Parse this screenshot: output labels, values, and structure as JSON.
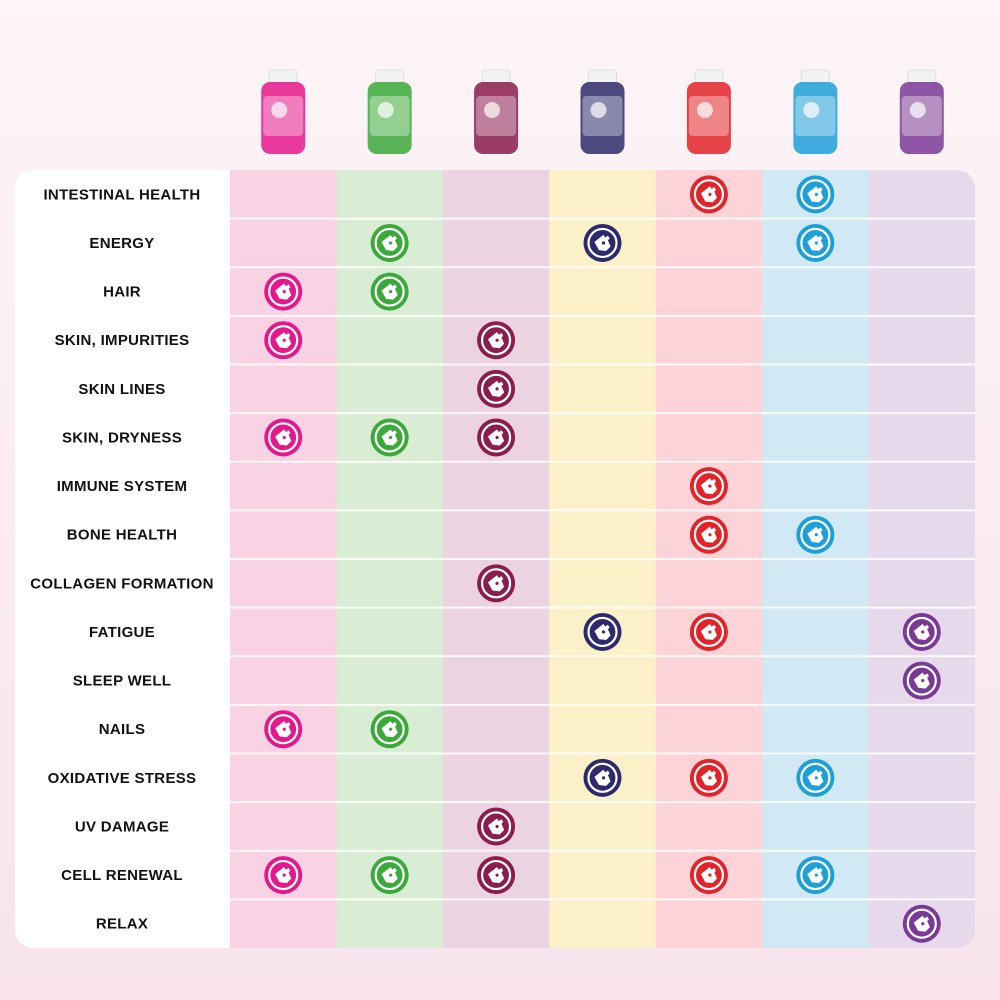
{
  "table": {
    "columns": [
      {
        "background": "#f9d3e3",
        "color": "#e5188b"
      },
      {
        "background": "#d9ecd4",
        "color": "#3ba93a"
      },
      {
        "background": "#ebd3e1",
        "color": "#8a1c4e"
      },
      {
        "background": "#fcf0c9",
        "color": "#2d2a6b"
      },
      {
        "background": "#fcd4d7",
        "color": "#e22329"
      },
      {
        "background": "#d0e9f5",
        "color": "#1d9fd8"
      },
      {
        "background": "#e7d9ec",
        "color": "#7a3995"
      }
    ],
    "rows": [
      {
        "label": "INTESTINAL HEALTH",
        "marks": [
          false,
          false,
          false,
          false,
          true,
          true,
          false
        ]
      },
      {
        "label": "ENERGY",
        "marks": [
          false,
          true,
          false,
          true,
          false,
          true,
          false
        ]
      },
      {
        "label": "HAIR",
        "marks": [
          true,
          true,
          false,
          false,
          false,
          false,
          false
        ]
      },
      {
        "label": "SKIN, IMPURITIES",
        "marks": [
          true,
          false,
          true,
          false,
          false,
          false,
          false
        ]
      },
      {
        "label": "SKIN LINES",
        "marks": [
          false,
          false,
          true,
          false,
          false,
          false,
          false
        ]
      },
      {
        "label": "SKIN, DRYNESS",
        "marks": [
          true,
          true,
          true,
          false,
          false,
          false,
          false
        ]
      },
      {
        "label": "IMMUNE SYSTEM",
        "marks": [
          false,
          false,
          false,
          false,
          true,
          false,
          false
        ]
      },
      {
        "label": "BONE HEALTH",
        "marks": [
          false,
          false,
          false,
          false,
          true,
          true,
          false
        ]
      },
      {
        "label": "COLLAGEN FORMATION",
        "marks": [
          false,
          false,
          true,
          false,
          false,
          false,
          false
        ]
      },
      {
        "label": "FATIGUE",
        "marks": [
          false,
          false,
          false,
          true,
          true,
          false,
          true
        ]
      },
      {
        "label": "SLEEP WELL",
        "marks": [
          false,
          false,
          false,
          false,
          false,
          false,
          true
        ]
      },
      {
        "label": "NAILS",
        "marks": [
          true,
          true,
          false,
          false,
          false,
          false,
          false
        ]
      },
      {
        "label": "OXIDATIVE STRESS",
        "marks": [
          false,
          false,
          false,
          true,
          true,
          true,
          false
        ]
      },
      {
        "label": "UV DAMAGE",
        "marks": [
          false,
          false,
          true,
          false,
          false,
          false,
          false
        ]
      },
      {
        "label": "CELL RENEWAL",
        "marks": [
          true,
          true,
          true,
          false,
          true,
          true,
          false
        ]
      },
      {
        "label": "RELAX",
        "marks": [
          false,
          false,
          false,
          false,
          false,
          false,
          true
        ]
      }
    ]
  }
}
